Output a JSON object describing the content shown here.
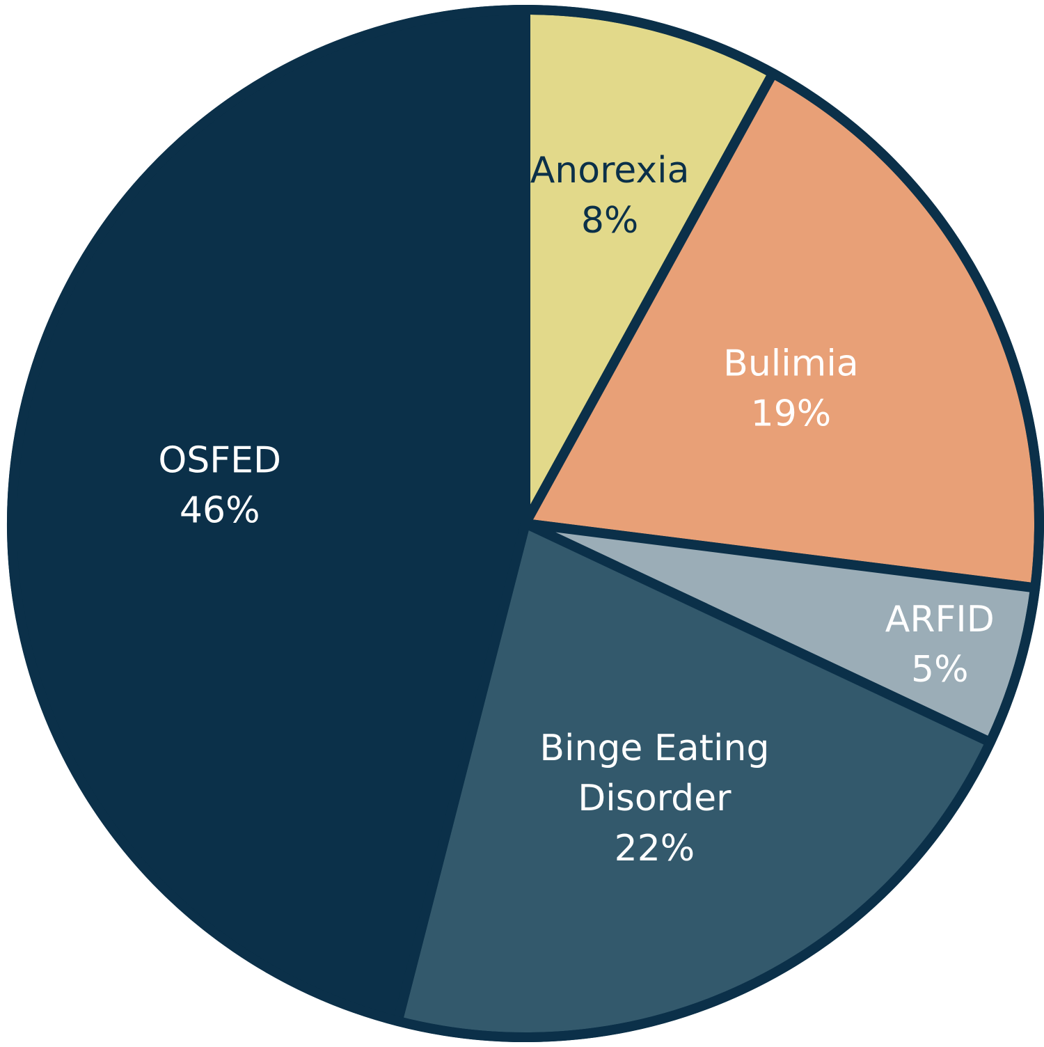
{
  "chart_data": {
    "type": "pie",
    "title": "",
    "start_angle_deg": 0,
    "direction": "clockwise",
    "slices": [
      {
        "label_lines": [
          "Anorexia"
        ],
        "value": 8,
        "value_text": "8%",
        "color": "#E2D98A",
        "text_color": "#0B3049"
      },
      {
        "label_lines": [
          "Bulimia"
        ],
        "value": 19,
        "value_text": "19%",
        "color": "#E8A077",
        "text_color": "#FFFFFF"
      },
      {
        "label_lines": [
          "ARFID"
        ],
        "value": 5,
        "value_text": "5%",
        "color": "#9BADB7",
        "text_color": "#FFFFFF"
      },
      {
        "label_lines": [
          "Binge Eating",
          "Disorder"
        ],
        "value": 22,
        "value_text": "22%",
        "color": "#33596C",
        "text_color": "#FFFFFF"
      },
      {
        "label_lines": [
          "OSFED"
        ],
        "value": 46,
        "value_text": "46%",
        "color": "#0B3049",
        "text_color": "#FFFFFF"
      }
    ],
    "outline_color": "#0B3049"
  }
}
